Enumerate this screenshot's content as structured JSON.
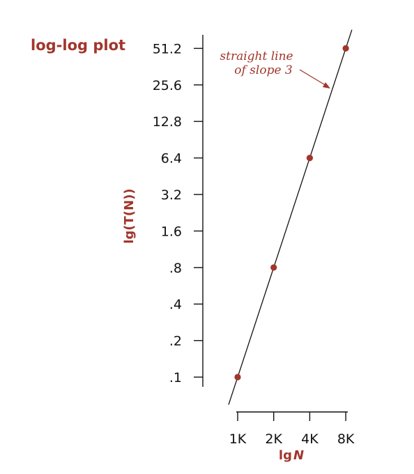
{
  "chart_data": {
    "type": "scatter",
    "title": "log-log plot",
    "xlabel_prefix": "lg",
    "xlabel_var": "N",
    "ylabel": "lg(T(N))",
    "x_scale": "log2",
    "y_scale": "log2",
    "x_ticks": [
      {
        "value": 1,
        "label": "1K"
      },
      {
        "value": 2,
        "label": "2K"
      },
      {
        "value": 4,
        "label": "4K"
      },
      {
        "value": 8,
        "label": "8K"
      }
    ],
    "y_ticks": [
      {
        "value": 0.1,
        "label": ".1"
      },
      {
        "value": 0.2,
        "label": ".2"
      },
      {
        "value": 0.4,
        "label": ".4"
      },
      {
        "value": 0.8,
        "label": ".8"
      },
      {
        "value": 1.6,
        "label": "1.6"
      },
      {
        "value": 3.2,
        "label": "3.2"
      },
      {
        "value": 6.4,
        "label": "6.4"
      },
      {
        "value": 12.8,
        "label": "12.8"
      },
      {
        "value": 25.6,
        "label": "25.6"
      },
      {
        "value": 51.2,
        "label": "51.2"
      }
    ],
    "points": [
      {
        "x": 1,
        "y": 0.1
      },
      {
        "x": 2,
        "y": 0.8
      },
      {
        "x": 4,
        "y": 6.4
      },
      {
        "x": 8,
        "y": 51.2
      }
    ],
    "fit_line": {
      "slope": 3,
      "x_range": [
        0.84,
        9.0
      ]
    },
    "annotation": {
      "line1": "straight line",
      "line2": "of slope 3"
    },
    "colors": {
      "accent": "#a1362c",
      "axis": "#111111",
      "point": "#a1362c"
    }
  }
}
